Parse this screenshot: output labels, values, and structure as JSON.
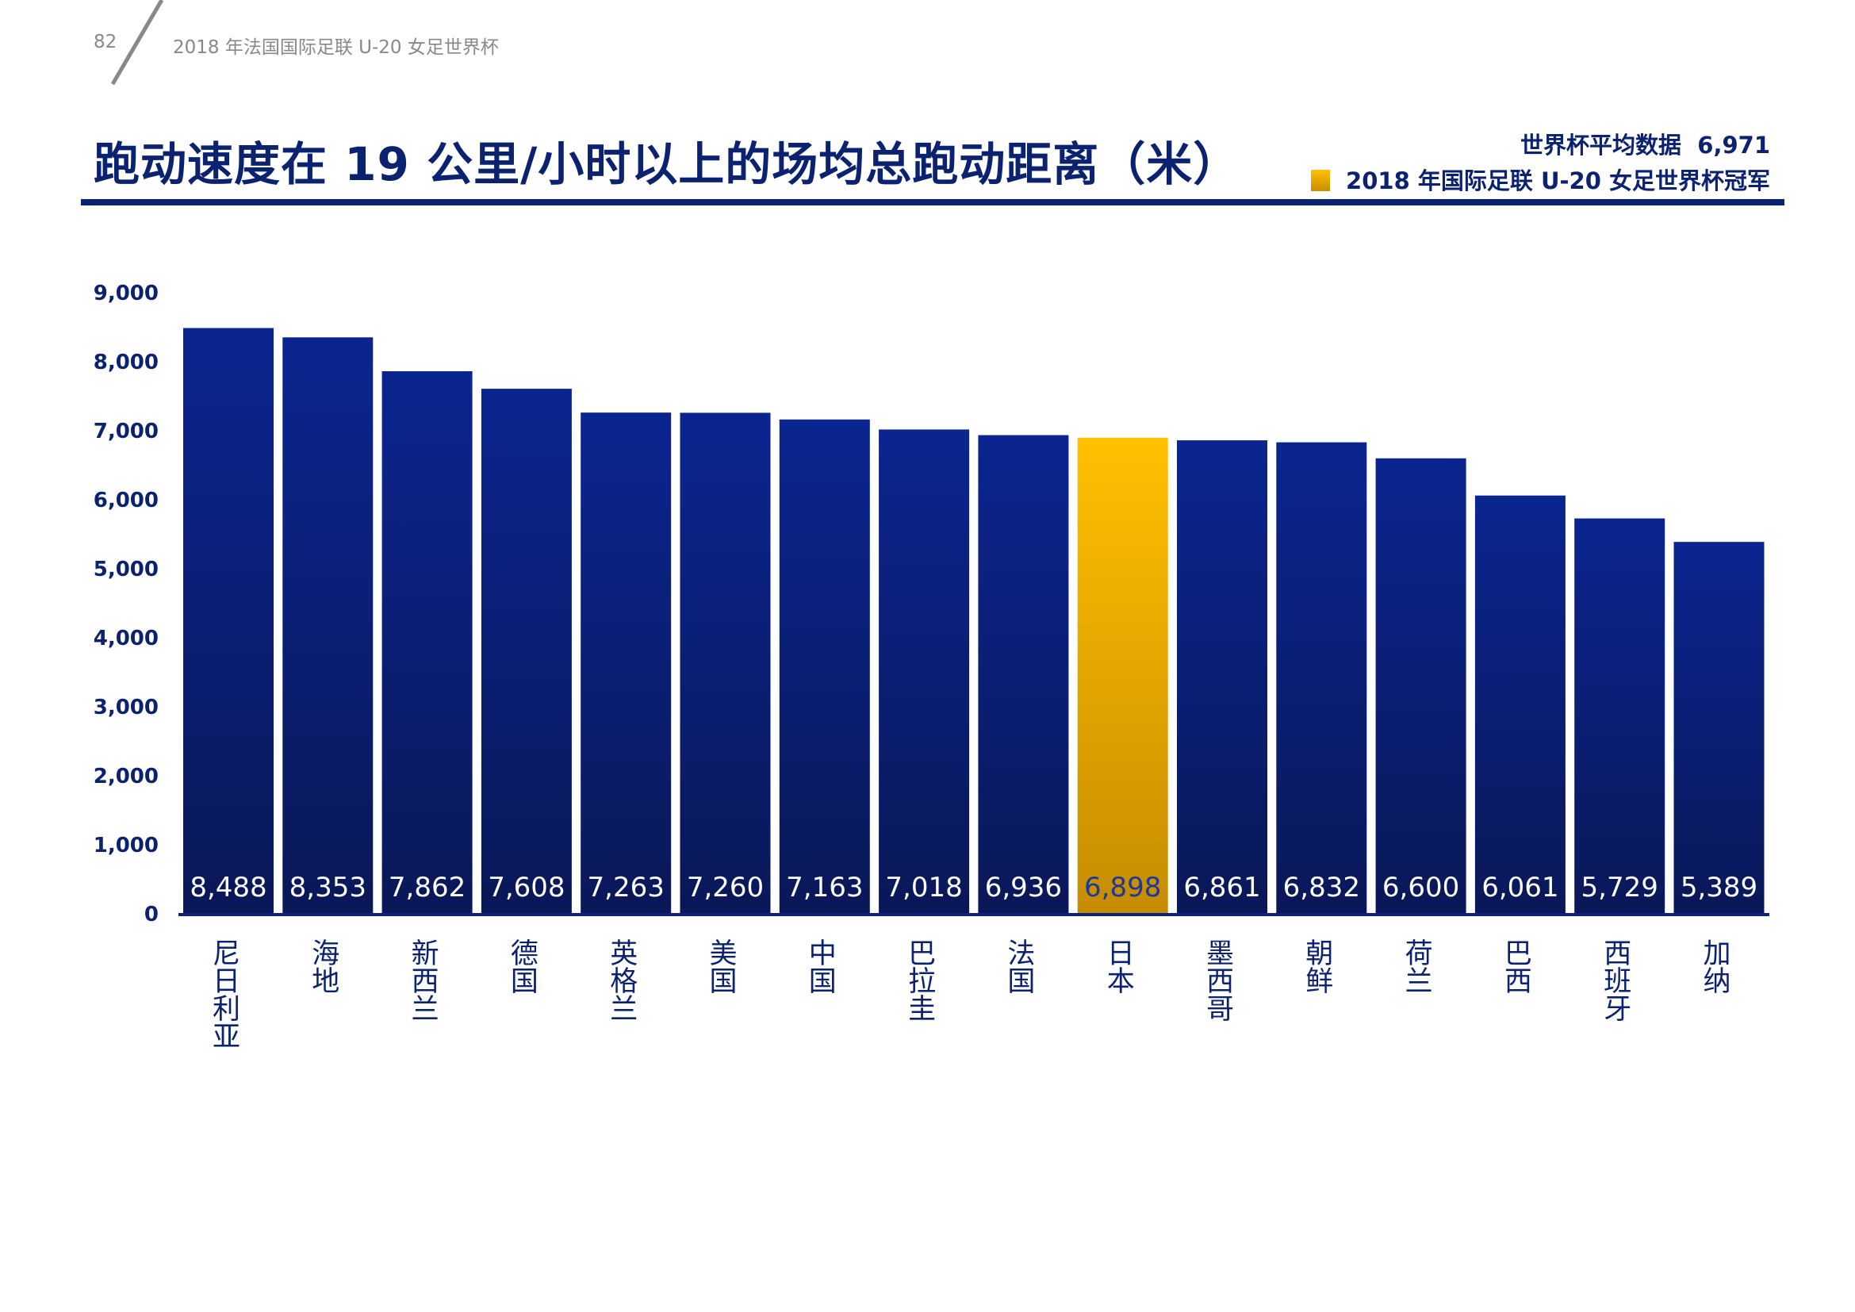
{
  "header": {
    "page_number": "82",
    "doc_title": "2018 年法国国际足联 U-20 女足世界杯"
  },
  "legend": {
    "average_label": "世界杯平均数据",
    "average_value": "6,971",
    "champion_label": "2018 年国际足联 U-20 女足世界杯冠军"
  },
  "colors": {
    "bar": "#0b2280",
    "bar_bottom": "#0a1858",
    "highlight": "#ffc000",
    "highlight_bottom": "#c68c00",
    "title": "#0b2270"
  },
  "chart_data": {
    "type": "bar",
    "title": "跑动速度在 19 公里/小时以上的场均总跑动距离（米）",
    "categories": [
      "尼日利亚",
      "海地",
      "新西兰",
      "德国",
      "英格兰",
      "美国",
      "中国",
      "巴拉圭",
      "法国",
      "日本",
      "墨西哥",
      "朝鲜",
      "荷兰",
      "巴西",
      "西班牙",
      "加纳"
    ],
    "values": [
      8488,
      8353,
      7862,
      7608,
      7263,
      7260,
      7163,
      7018,
      6936,
      6898,
      6861,
      6832,
      6600,
      6061,
      5729,
      5389
    ],
    "value_labels": [
      "8,488",
      "8,353",
      "7,862",
      "7,608",
      "7,263",
      "7,260",
      "7,163",
      "7,018",
      "6,936",
      "6,898",
      "6,861",
      "6,832",
      "6,600",
      "6,061",
      "5,729",
      "5,389"
    ],
    "highlight": "日本",
    "ylim": [
      0,
      9000
    ],
    "yticks": [
      0,
      1000,
      2000,
      3000,
      4000,
      5000,
      6000,
      7000,
      8000,
      9000
    ],
    "ytick_labels": [
      "0",
      "1,000",
      "2,000",
      "3,000",
      "4,000",
      "5,000",
      "6,000",
      "7,000",
      "8,000",
      "9,000"
    ],
    "grid": false,
    "xlabel": "",
    "ylabel": ""
  }
}
